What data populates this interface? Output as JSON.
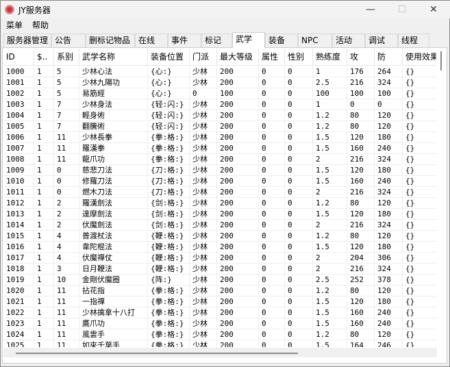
{
  "window": {
    "title": "JY服务器",
    "minimize": "—",
    "maximize": "☐",
    "close": "✕"
  },
  "menu": [
    "菜单",
    "帮助"
  ],
  "tabs": [
    "服务器管理",
    "公告",
    "删标记物品",
    "在线",
    "事件",
    "标记",
    "武学",
    "装备",
    "NPC",
    "活动",
    "调试",
    "线程"
  ],
  "active_tab": "武学",
  "table": {
    "headers": [
      "ID",
      "$..",
      "系别",
      "武学名称",
      "装备位置",
      "门派",
      "最大等级",
      "属性",
      "性别",
      "熟练度",
      "攻",
      "防",
      "使用效果"
    ],
    "rows": [
      [
        "1000",
        "1",
        "5",
        "少林心法",
        "{心:}",
        "少林",
        "200",
        "0",
        "0",
        "1",
        "176",
        "264",
        "{}"
      ],
      [
        "1001",
        "1",
        "5",
        "少林九陽功",
        "{心:}",
        "少林",
        "200",
        "0",
        "0",
        "2.5",
        "216",
        "324",
        "{}"
      ],
      [
        "1002",
        "1",
        "5",
        "易筋經",
        "{心:}",
        "0",
        "100",
        "0",
        "0",
        "100",
        "100",
        "100",
        "{}"
      ],
      [
        "1003",
        "1",
        "7",
        "少林身法",
        "{轻:闪:}",
        "少林",
        "200",
        "0",
        "0",
        "1",
        "0",
        "0",
        "{}"
      ],
      [
        "1004",
        "1",
        "7",
        "輕身術",
        "{轻:闪:}",
        "少林",
        "200",
        "0",
        "0",
        "1.2",
        "80",
        "120",
        "{}"
      ],
      [
        "1005",
        "1",
        "7",
        "翻騰術",
        "{轻:闪:}",
        "少林",
        "200",
        "0",
        "0",
        "1.2",
        "80",
        "120",
        "{}"
      ],
      [
        "1006",
        "1",
        "11",
        "少林長拳",
        "{拳:格:}",
        "少林",
        "200",
        "0",
        "0",
        "1.5",
        "120",
        "180",
        "{}"
      ],
      [
        "1007",
        "1",
        "11",
        "羅漢拳",
        "{拳:格:}",
        "少林",
        "200",
        "0",
        "0",
        "1.5",
        "160",
        "240",
        "{}"
      ],
      [
        "1008",
        "1",
        "11",
        "龍爪功",
        "{拳:格:}",
        "少林",
        "200",
        "0",
        "0",
        "2",
        "216",
        "324",
        "{}"
      ],
      [
        "1009",
        "1",
        "0",
        "慈悲刀法",
        "{刀:格:}",
        "少林",
        "200",
        "0",
        "0",
        "1.5",
        "120",
        "180",
        "{}"
      ],
      [
        "1010",
        "1",
        "0",
        "修羅刀法",
        "{刀:格:}",
        "少林",
        "200",
        "0",
        "0",
        "1.5",
        "160",
        "240",
        "{}"
      ],
      [
        "1011",
        "1",
        "0",
        "燃木刀法",
        "{刀:格:}",
        "少林",
        "200",
        "0",
        "0",
        "2",
        "216",
        "324",
        "{}"
      ],
      [
        "1012",
        "1",
        "2",
        "羅漢劍法",
        "{剑:格:}",
        "少林",
        "200",
        "0",
        "0",
        "1.2",
        "80",
        "120",
        "{}"
      ],
      [
        "1013",
        "1",
        "2",
        "達摩劍法",
        "{剑:格:}",
        "少林",
        "200",
        "0",
        "0",
        "1.5",
        "120",
        "180",
        "{}"
      ],
      [
        "1014",
        "1",
        "2",
        "伏魔劍法",
        "{剑:格:}",
        "少林",
        "200",
        "0",
        "0",
        "2",
        "216",
        "324",
        "{}"
      ],
      [
        "1015",
        "1",
        "4",
        "普渡杖法",
        "{鞭:格:}",
        "少林",
        "200",
        "0",
        "0",
        "1.2",
        "80",
        "120",
        "{}"
      ],
      [
        "1016",
        "1",
        "4",
        "韋陀棍法",
        "{鞭:格:}",
        "少林",
        "200",
        "0",
        "0",
        "1.5",
        "120",
        "180",
        "{}"
      ],
      [
        "1017",
        "1",
        "4",
        "伏魔禪仗",
        "{鞭:格:}",
        "少林",
        "200",
        "0",
        "0",
        "2",
        "204",
        "306",
        "{}"
      ],
      [
        "1018",
        "1",
        "3",
        "日月鞭法",
        "{鞭:格:}",
        "少林",
        "200",
        "0",
        "0",
        "2",
        "216",
        "324",
        "{}"
      ],
      [
        "1019",
        "1",
        "10",
        "金剛伏魔圈",
        "{阵:}",
        "少林",
        "200",
        "0",
        "0",
        "2.5",
        "252",
        "378",
        "{}"
      ],
      [
        "1020",
        "1",
        "11",
        "拈花指",
        "{拳:格:}",
        "少林",
        "200",
        "0",
        "0",
        "1.2",
        "80",
        "120",
        "{}"
      ],
      [
        "1021",
        "1",
        "11",
        "一指禪",
        "{拳:格:}",
        "少林",
        "200",
        "0",
        "0",
        "1.5",
        "120",
        "180",
        "{}"
      ],
      [
        "1022",
        "1",
        "11",
        "少林擒拿十八打",
        "{拳:格:}",
        "少林",
        "200",
        "0",
        "0",
        "1.5",
        "160",
        "240",
        "{}"
      ],
      [
        "1023",
        "1",
        "11",
        "鷹爪功",
        "{拳:格:}",
        "少林",
        "200",
        "0",
        "0",
        "1.5",
        "160",
        "240",
        "{}"
      ],
      [
        "1024",
        "1",
        "11",
        "風雲手",
        "{拳:格:}",
        "少林",
        "200",
        "0",
        "0",
        "1.2",
        "80",
        "120",
        "{}"
      ],
      [
        "1025",
        "1",
        "11",
        "如來千葉手",
        "{拳:格:}",
        "少林",
        "200",
        "0",
        "0",
        "1.5",
        "164",
        "246",
        "{}"
      ]
    ]
  }
}
